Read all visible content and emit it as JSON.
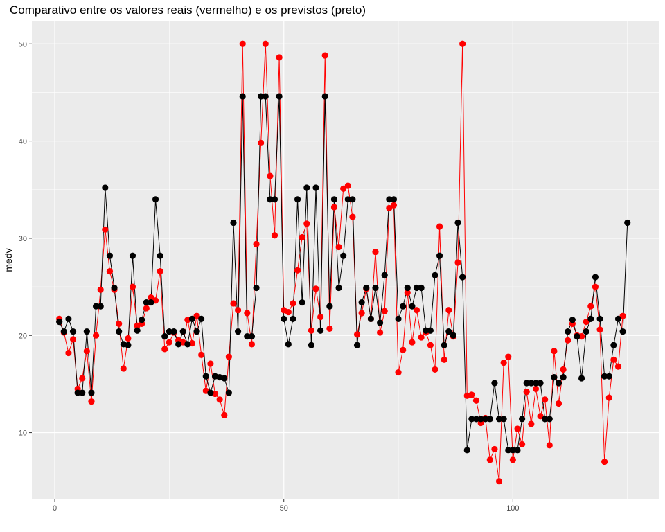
{
  "chart_data": {
    "type": "line",
    "title": "Comparativo entre os valores reais (vermelho) e os previstos (preto)",
    "xlabel": "",
    "ylabel": "medv",
    "xlim": [
      -5,
      132
    ],
    "ylim": [
      3.2,
      52.3
    ],
    "x_ticks": [
      0,
      50,
      100
    ],
    "y_ticks": [
      10,
      20,
      30,
      40,
      50
    ],
    "grid": true,
    "background": "#ebebeb",
    "series": [
      {
        "color": "#ff0000",
        "marker": "point",
        "values": [
          21.7,
          20.3,
          18.2,
          19.6,
          14.5,
          15.6,
          18.4,
          13.2,
          20.0,
          24.7,
          30.9,
          26.6,
          24.7,
          21.2,
          16.6,
          19.7,
          25.0,
          21.0,
          21.2,
          22.8,
          23.9,
          23.6,
          26.6,
          18.6,
          19.3,
          20.3,
          19.5,
          19.3,
          21.6,
          19.2,
          22.0,
          18.0,
          14.3,
          17.1,
          14.0,
          13.4,
          11.8,
          17.8,
          23.3,
          22.6,
          50.0,
          22.3,
          19.1,
          29.4,
          39.8,
          50.0,
          36.4,
          30.3,
          48.6,
          22.6,
          22.4,
          23.3,
          26.7,
          30.1,
          31.5,
          20.5,
          24.8,
          21.9,
          48.8,
          20.7,
          33.2,
          29.1,
          35.1,
          35.4,
          32.2,
          20.1,
          22.3,
          24.8,
          21.7,
          28.6,
          20.3,
          22.5,
          33.1,
          33.4,
          16.2,
          18.5,
          24.4,
          19.3,
          22.6,
          19.8,
          20.3,
          19.0,
          16.5,
          31.2,
          17.5,
          22.6,
          19.9,
          27.5,
          50.0,
          13.8,
          13.9,
          13.3,
          11.0,
          11.5,
          7.2,
          8.3,
          5.0,
          17.2,
          17.8,
          7.2,
          10.4,
          8.8,
          14.2,
          10.9,
          14.5,
          11.7,
          13.4,
          8.7,
          18.4,
          13.0,
          16.5,
          19.5,
          21.2,
          20.0,
          19.9,
          21.4,
          23.0,
          25.0,
          20.6,
          7.0,
          13.6,
          17.5,
          16.8,
          22.0
        ]
      },
      {
        "color": "#000000",
        "marker": "point",
        "values": [
          21.4,
          20.4,
          21.7,
          20.4,
          14.1,
          14.1,
          20.4,
          14.1,
          23.0,
          23.0,
          35.2,
          28.2,
          24.9,
          20.4,
          19.1,
          19.0,
          28.2,
          20.5,
          21.6,
          23.4,
          23.4,
          34.0,
          28.2,
          19.9,
          20.4,
          20.4,
          19.1,
          20.4,
          19.1,
          21.7,
          20.4,
          21.7,
          15.8,
          14.1,
          15.8,
          15.7,
          15.6,
          14.1,
          31.6,
          20.4,
          44.6,
          19.9,
          19.9,
          24.9,
          44.6,
          44.6,
          34.0,
          34.0,
          44.6,
          21.7,
          19.1,
          21.7,
          34.0,
          23.4,
          35.2,
          19.0,
          35.2,
          20.5,
          44.6,
          23.0,
          34.0,
          24.9,
          28.2,
          34.0,
          34.0,
          19.0,
          23.4,
          24.9,
          21.7,
          24.9,
          21.3,
          26.2,
          34.0,
          34.0,
          21.7,
          23.0,
          24.9,
          23.0,
          24.9,
          24.9,
          20.5,
          20.5,
          26.2,
          28.2,
          19.0,
          20.4,
          20.0,
          31.6,
          26.0,
          8.2,
          11.4,
          11.4,
          11.4,
          11.4,
          11.4,
          15.1,
          11.4,
          11.4,
          8.2,
          8.2,
          8.2,
          11.4,
          15.1,
          15.1,
          15.1,
          15.1,
          11.4,
          11.4,
          15.7,
          15.1,
          15.7,
          20.4,
          21.6,
          19.9,
          15.6,
          20.4,
          21.7,
          26.0,
          21.7,
          15.8,
          15.8,
          19.0,
          21.7,
          20.4,
          31.6
        ]
      }
    ]
  }
}
